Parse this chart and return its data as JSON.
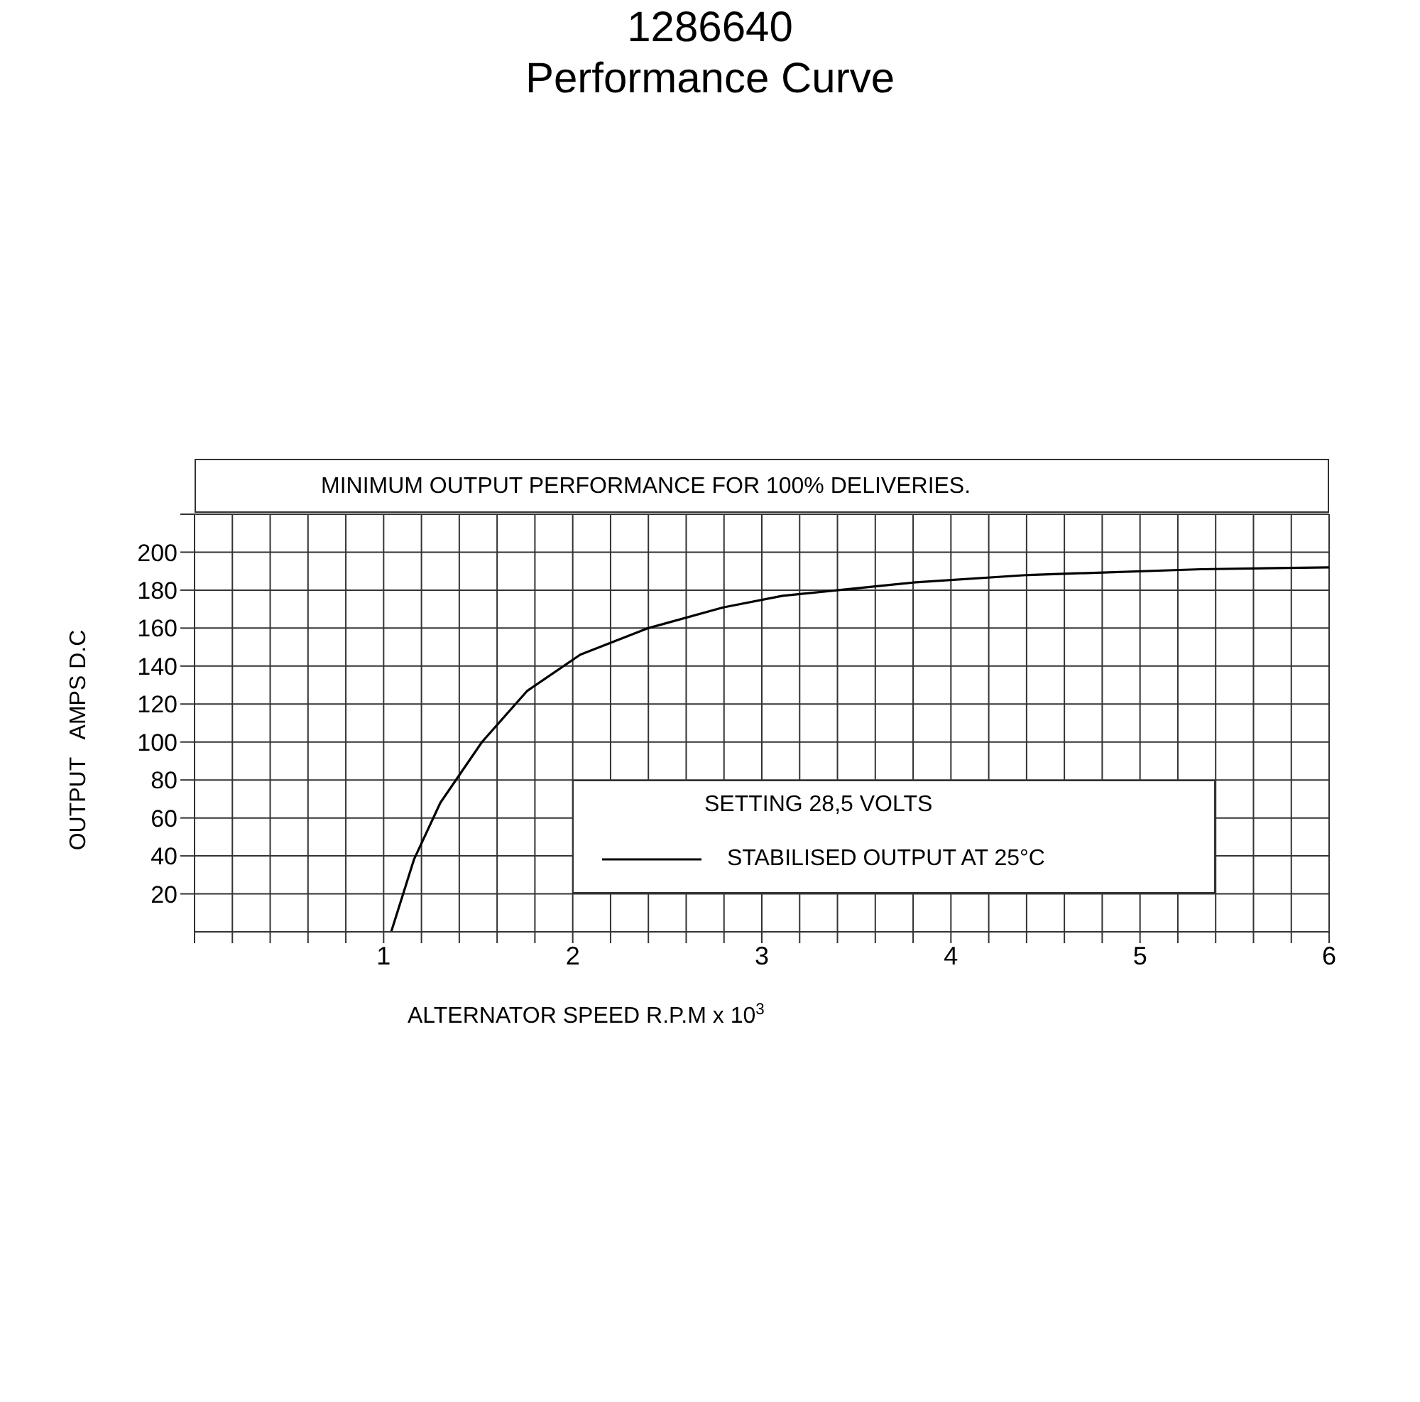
{
  "chart_data": {
    "type": "line",
    "title": "1286640",
    "subtitle": "Performance Curve",
    "xlabel": "ALTERNATOR SPEED  R.P.M x 10$^{3}$",
    "ylabel": "OUTPUT   AMPS D.C",
    "annotations": [
      "MINIMUM OUTPUT PERFORMANCE FOR 100% DELIVERIES."
    ],
    "legend_title": "SETTING 28,5 VOLTS",
    "legend": "bottom right",
    "grid": true,
    "marker": "none",
    "line_style": "solid",
    "xlim": [
      0,
      6
    ],
    "xticks": [
      {
        "value": 0,
        "label": null
      },
      {
        "value": 0.2,
        "label": null
      },
      {
        "value": 0.4,
        "label": null
      },
      {
        "value": 0.6,
        "label": null
      },
      {
        "value": 0.8,
        "label": null
      },
      1,
      {
        "value": 1.2,
        "label": null
      },
      {
        "value": 1.4,
        "label": null
      },
      {
        "value": 1.6,
        "label": null
      },
      {
        "value": 1.8,
        "label": null
      },
      2,
      {
        "value": 2.2,
        "label": null
      },
      {
        "value": 2.4,
        "label": null
      },
      {
        "value": 2.6,
        "label": null
      },
      {
        "value": 2.8,
        "label": null
      },
      3,
      {
        "value": 3.2,
        "label": null
      },
      {
        "value": 3.4,
        "label": null
      },
      {
        "value": 3.6,
        "label": null
      },
      {
        "value": 3.8,
        "label": null
      },
      4,
      {
        "value": 4.2,
        "label": null
      },
      {
        "value": 4.4,
        "label": null
      },
      {
        "value": 4.6,
        "label": null
      },
      {
        "value": 4.8,
        "label": null
      },
      5,
      {
        "value": 5.2,
        "label": null
      },
      {
        "value": 5.4,
        "label": null
      },
      {
        "value": 5.6,
        "label": null
      },
      {
        "value": 5.8,
        "label": null
      },
      6
    ],
    "ylim": [
      0,
      220
    ],
    "yticks": [
      20,
      40,
      60,
      80,
      100,
      120,
      140,
      160,
      180,
      200,
      {
        "value": 220,
        "label": null
      }
    ],
    "x": [
      1.04,
      1.16,
      1.3,
      1.52,
      1.76,
      2.04,
      2.4,
      2.8,
      3.11,
      3.8,
      4.41,
      5.32,
      6.0
    ],
    "series": [
      {
        "name": "STABILISED OUTPUT AT 25°C",
        "color": "#000000",
        "values": [
          0,
          38,
          68,
          100,
          127,
          146,
          160,
          171,
          177,
          184,
          188,
          191,
          192
        ]
      }
    ]
  }
}
